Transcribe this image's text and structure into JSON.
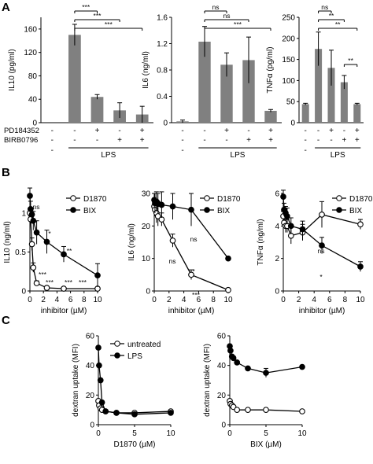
{
  "panels": [
    {
      "id": "A",
      "label": "A"
    },
    {
      "id": "B",
      "label": "B"
    },
    {
      "id": "C",
      "label": "C"
    }
  ],
  "colors": {
    "bar": "#808080",
    "line": "#000000",
    "open_marker": "#ffffff",
    "filled_marker": "#000000"
  },
  "treatment_rows": {
    "pd_label": "PD184352",
    "birb_label": "BIRB0796",
    "lps_label": "LPS",
    "pd": [
      "-",
      "-",
      "+",
      "-",
      "+"
    ],
    "birb": [
      "-",
      "-",
      "-",
      "+",
      "+"
    ],
    "lps": [
      "-",
      "+",
      "+",
      "+",
      "+"
    ]
  },
  "chart_data": [
    {
      "panel": "A",
      "type": "bar",
      "ylabel": "IL10 (pg/ml)",
      "ylim": [
        0,
        180
      ],
      "yticks": [
        0,
        40,
        80,
        120,
        160
      ],
      "values": [
        0,
        150,
        44,
        21,
        14
      ],
      "errors": [
        0,
        18,
        4,
        13,
        14
      ],
      "significance": [
        {
          "from": 1,
          "to": 2,
          "label": "***"
        },
        {
          "from": 1,
          "to": 3,
          "label": "***"
        },
        {
          "from": 1,
          "to": 4,
          "label": "***"
        }
      ]
    },
    {
      "panel": "A",
      "type": "bar",
      "ylabel": "IL6 (ng/ml)",
      "ylim": [
        0,
        1.6
      ],
      "yticks": [
        0,
        0.4,
        0.8,
        1.2,
        1.6
      ],
      "values": [
        0.02,
        1.23,
        0.88,
        0.95,
        0.18
      ],
      "errors": [
        0.02,
        0.23,
        0.18,
        0.35,
        0.02
      ],
      "significance": [
        {
          "from": 1,
          "to": 2,
          "label": "ns"
        },
        {
          "from": 1,
          "to": 3,
          "label": "ns"
        },
        {
          "from": 1,
          "to": 4,
          "label": "***"
        }
      ]
    },
    {
      "panel": "A",
      "type": "bar",
      "ylabel": "TNFα (pg/ml)",
      "ylim": [
        0,
        250
      ],
      "yticks": [
        0,
        50,
        100,
        150,
        200,
        250
      ],
      "values": [
        44,
        175,
        130,
        96,
        44
      ],
      "errors": [
        2,
        40,
        42,
        16,
        2
      ],
      "significance": [
        {
          "from": 1,
          "to": 2,
          "label": "ns"
        },
        {
          "from": 1,
          "to": 3,
          "label": "**"
        },
        {
          "from": 1,
          "to": 4,
          "label": "**"
        },
        {
          "from": 3,
          "to": 4,
          "label": "**"
        }
      ]
    },
    {
      "panel": "B",
      "type": "line",
      "ylabel": "IL10 (ng/ml)",
      "xlabel": "inhibitor (µM)",
      "xlim": [
        0,
        10
      ],
      "xticks": [
        0,
        2,
        4,
        6,
        8,
        10
      ],
      "ylim": [
        0,
        1.25
      ],
      "yticks": [
        0,
        0.5,
        1
      ],
      "ytick_labels": [
        "0",
        "0.5",
        "1"
      ],
      "series": [
        {
          "name": "D1870",
          "marker": "open",
          "x": [
            0,
            0.1,
            0.3,
            0.5,
            1,
            2.5,
            5,
            10
          ],
          "y": [
            1.0,
            0.92,
            0.6,
            0.3,
            0.1,
            0.04,
            0.03,
            0.03
          ],
          "err": [
            0.05,
            0.04,
            0.08,
            0.06,
            0.03,
            0.02,
            0.02,
            0.02
          ]
        },
        {
          "name": "BIX",
          "marker": "filled",
          "x": [
            0,
            0.1,
            0.3,
            0.5,
            1,
            2.5,
            5,
            10
          ],
          "y": [
            1.22,
            1.05,
            0.98,
            0.9,
            0.75,
            0.63,
            0.47,
            0.2
          ],
          "err": [
            0.1,
            0.1,
            0.08,
            0.12,
            0.15,
            0.15,
            0.1,
            0.15
          ]
        }
      ],
      "annotations": [
        "ns",
        "*",
        "**",
        "***",
        "***",
        "***",
        "***"
      ]
    },
    {
      "panel": "B",
      "type": "line",
      "ylabel": "IL6 (ng/ml)",
      "xlabel": "inhibitor (µM)",
      "xlim": [
        0,
        10
      ],
      "xticks": [
        0,
        2,
        4,
        6,
        8,
        10
      ],
      "ylim": [
        0,
        30
      ],
      "yticks": [
        0,
        10,
        20,
        30
      ],
      "ytick_labels": [
        "0",
        "10",
        "20",
        "30"
      ],
      "series": [
        {
          "name": "D1870",
          "marker": "open",
          "x": [
            0,
            0.1,
            0.3,
            0.5,
            1,
            2.5,
            5,
            10
          ],
          "y": [
            26,
            25,
            24,
            23,
            22,
            15.5,
            5,
            0.3
          ],
          "err": [
            2,
            2,
            3,
            3,
            2,
            2,
            1.5,
            0.2
          ]
        },
        {
          "name": "BIX",
          "marker": "filled",
          "x": [
            0,
            0.1,
            0.3,
            0.5,
            1,
            2.5,
            5,
            10
          ],
          "y": [
            28,
            27,
            27.5,
            27,
            26.5,
            26,
            25,
            10
          ],
          "err": [
            2,
            3,
            3,
            3,
            4,
            4,
            5,
            0.5
          ]
        }
      ],
      "annotations": [
        "ns",
        "ns",
        "*",
        "***"
      ]
    },
    {
      "panel": "B",
      "type": "line",
      "ylabel": "TNFα (ng/ml)",
      "xlabel": "inhibitor (µM)",
      "xlim": [
        0,
        10
      ],
      "xticks": [
        0,
        2,
        4,
        6,
        8,
        10
      ],
      "ylim": [
        0,
        6
      ],
      "yticks": [
        0,
        2,
        4,
        6
      ],
      "ytick_labels": [
        "0",
        "2",
        "4",
        "6"
      ],
      "series": [
        {
          "name": "D1870",
          "marker": "open",
          "x": [
            0,
            0.1,
            0.3,
            0.5,
            1,
            2.5,
            5,
            10
          ],
          "y": [
            4.6,
            4.2,
            4.0,
            4.0,
            3.4,
            3.6,
            4.7,
            4.1
          ],
          "err": [
            0.3,
            0.3,
            0.4,
            0.4,
            0.5,
            0.5,
            0.8,
            0.3
          ]
        },
        {
          "name": "BIX",
          "marker": "filled",
          "x": [
            0,
            0.1,
            0.3,
            0.5,
            1,
            2.5,
            5,
            10
          ],
          "y": [
            5.8,
            5.0,
            4.8,
            4.6,
            4.0,
            3.8,
            2.8,
            1.5
          ],
          "err": [
            0.4,
            0.4,
            0.4,
            0.5,
            0.5,
            0.5,
            0.5,
            0.3
          ]
        }
      ],
      "annotations": [
        "ns",
        "*"
      ]
    },
    {
      "panel": "C",
      "type": "line",
      "ylabel": "dextran uptake (MFI)",
      "xlabel": "D1870 (µM)",
      "xlim": [
        0,
        10
      ],
      "xticks": [
        0,
        5,
        10
      ],
      "ylim": [
        0,
        60
      ],
      "yticks": [
        0,
        20,
        40,
        60
      ],
      "ytick_labels": [
        "0",
        "20",
        "40",
        "60"
      ],
      "series": [
        {
          "name": "untreated",
          "marker": "open",
          "x": [
            0,
            0.1,
            0.3,
            0.5,
            1,
            2.5,
            5,
            10
          ],
          "y": [
            16,
            13,
            11,
            10,
            9,
            8,
            8,
            9
          ],
          "err": [
            0,
            0,
            0,
            0,
            0,
            0,
            0,
            0
          ]
        },
        {
          "name": "LPS",
          "marker": "filled",
          "x": [
            0,
            0.1,
            0.3,
            0.5,
            1,
            2.5,
            5,
            10
          ],
          "y": [
            52,
            40,
            30,
            15,
            9,
            8,
            7,
            8
          ],
          "err": [
            0,
            0,
            0,
            0,
            0,
            0,
            0,
            0
          ]
        }
      ]
    },
    {
      "panel": "C",
      "type": "line",
      "ylabel": "dextran uptake (MFI)",
      "xlabel": "BIX (µM)",
      "xlim": [
        0,
        10
      ],
      "xticks": [
        0,
        5,
        10
      ],
      "ylim": [
        0,
        60
      ],
      "yticks": [
        0,
        20,
        40,
        60
      ],
      "ytick_labels": [
        "0",
        "20",
        "40",
        "60"
      ],
      "series": [
        {
          "name": "untreated",
          "marker": "open",
          "x": [
            0,
            0.1,
            0.3,
            0.5,
            1,
            2.5,
            5,
            10
          ],
          "y": [
            16,
            14,
            13,
            12,
            10,
            10,
            10,
            9
          ],
          "err": [
            0,
            0,
            0,
            0,
            0,
            0,
            0,
            0
          ]
        },
        {
          "name": "LPS",
          "marker": "filled",
          "x": [
            0,
            0.1,
            0.3,
            0.5,
            1,
            2.5,
            5,
            10
          ],
          "y": [
            53,
            50,
            46,
            45,
            42,
            38,
            35,
            39
          ],
          "err": [
            0,
            0,
            0,
            0,
            0,
            0,
            3,
            0
          ]
        }
      ]
    }
  ]
}
